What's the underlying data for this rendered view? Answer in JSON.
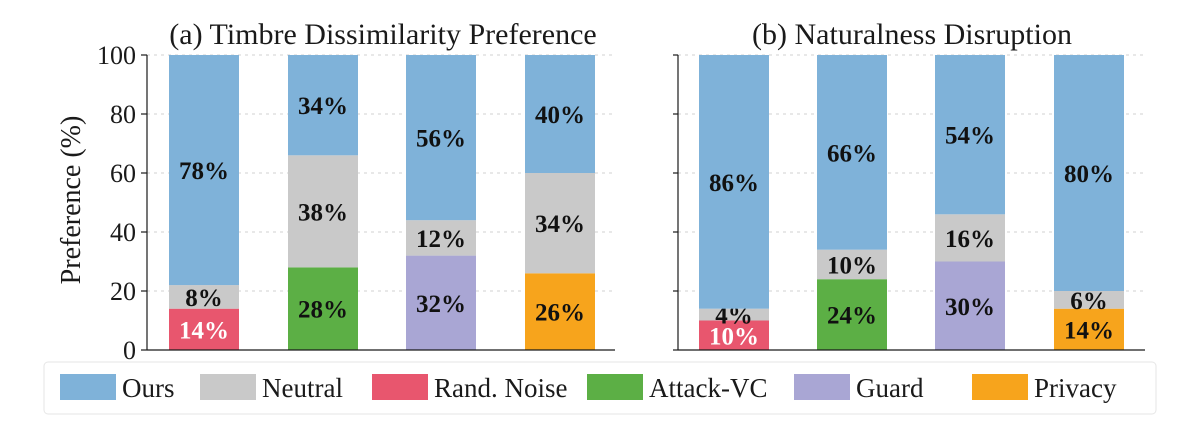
{
  "chart_data": [
    {
      "type": "bar",
      "stacked": true,
      "title": "(a) Timbre Dissimilarity Preference",
      "ylabel": "Preference (%)",
      "ylim": [
        0,
        100
      ],
      "yticks": [
        "0",
        "20",
        "40",
        "60",
        "80",
        "100"
      ],
      "grid": true,
      "bars": [
        {
          "segments": [
            {
              "series": "Rand. Noise",
              "value": 14,
              "label": "14%"
            },
            {
              "series": "Neutral",
              "value": 8,
              "label": "8%"
            },
            {
              "series": "Ours",
              "value": 78,
              "label": "78%"
            }
          ]
        },
        {
          "segments": [
            {
              "series": "Attack-VC",
              "value": 28,
              "label": "28%"
            },
            {
              "series": "Neutral",
              "value": 38,
              "label": "38%"
            },
            {
              "series": "Ours",
              "value": 34,
              "label": "34%"
            }
          ]
        },
        {
          "segments": [
            {
              "series": "Guard",
              "value": 32,
              "label": "32%"
            },
            {
              "series": "Neutral",
              "value": 12,
              "label": "12%"
            },
            {
              "series": "Ours",
              "value": 56,
              "label": "56%"
            }
          ]
        },
        {
          "segments": [
            {
              "series": "Privacy",
              "value": 26,
              "label": "26%"
            },
            {
              "series": "Neutral",
              "value": 34,
              "label": "34%"
            },
            {
              "series": "Ours",
              "value": 40,
              "label": "40%"
            }
          ]
        }
      ]
    },
    {
      "type": "bar",
      "stacked": true,
      "title": "(b) Naturalness Disruption",
      "ylim": [
        0,
        100
      ],
      "grid": true,
      "bars": [
        {
          "segments": [
            {
              "series": "Rand. Noise",
              "value": 10,
              "label": "10%"
            },
            {
              "series": "Neutral",
              "value": 4,
              "label": "4%"
            },
            {
              "series": "Ours",
              "value": 86,
              "label": "86%"
            }
          ]
        },
        {
          "segments": [
            {
              "series": "Attack-VC",
              "value": 24,
              "label": "24%"
            },
            {
              "series": "Neutral",
              "value": 10,
              "label": "10%"
            },
            {
              "series": "Ours",
              "value": 66,
              "label": "66%"
            }
          ]
        },
        {
          "segments": [
            {
              "series": "Guard",
              "value": 30,
              "label": "30%"
            },
            {
              "series": "Neutral",
              "value": 16,
              "label": "16%"
            },
            {
              "series": "Ours",
              "value": 54,
              "label": "54%"
            }
          ]
        },
        {
          "segments": [
            {
              "series": "Privacy",
              "value": 14,
              "label": "14%"
            },
            {
              "series": "Neutral",
              "value": 6,
              "label": "6%"
            },
            {
              "series": "Ours",
              "value": 80,
              "label": "80%"
            }
          ]
        }
      ]
    }
  ],
  "legend": {
    "placement": "bottom",
    "items": [
      {
        "name": "Ours",
        "color": "#7fb2d9"
      },
      {
        "name": "Neutral",
        "color": "#c9c9c9"
      },
      {
        "name": "Rand. Noise",
        "color": "#e8566e"
      },
      {
        "name": "Attack-VC",
        "color": "#5caf45"
      },
      {
        "name": "Guard",
        "color": "#a9a6d4"
      },
      {
        "name": "Privacy",
        "color": "#f7a41c"
      }
    ]
  },
  "label_colors": {
    "Rand. Noise": "#ffffff",
    "default": "#111111"
  }
}
